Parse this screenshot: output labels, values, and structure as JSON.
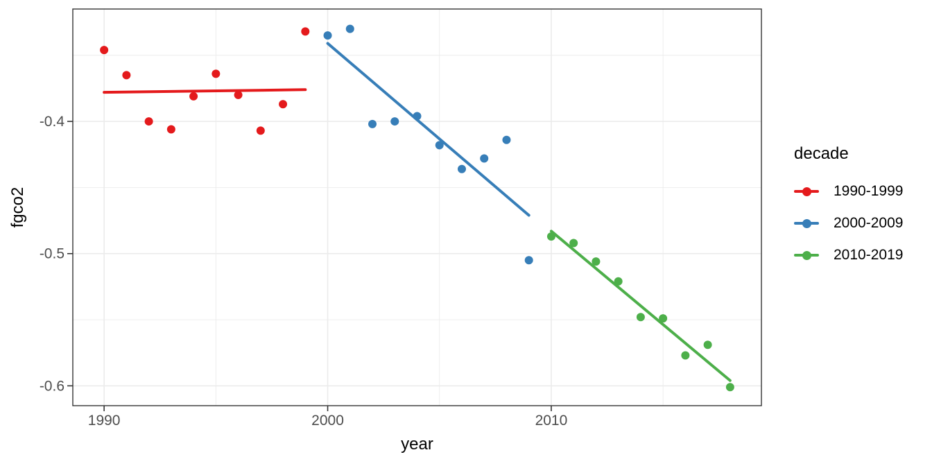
{
  "chart_data": {
    "type": "scatter",
    "title": "",
    "xlabel": "year",
    "ylabel": "fgco2",
    "legend_title": "decade",
    "legend_position": "right",
    "grid": true,
    "colors": {
      "background": "#ffffff",
      "panel_background": "#ffffff",
      "panel_border": "#333333",
      "grid_major": "#ebebeb",
      "grid_minor": "#ebebeb",
      "tick_mark": "#333333",
      "axis_text": "#4d4d4d",
      "axis_title": "#000000"
    },
    "x_axis": {
      "range": [
        1988.6,
        2019.4
      ],
      "ticks": [
        1990,
        2000,
        2010
      ],
      "tick_labels": [
        "1990",
        "2000",
        "2010"
      ],
      "minor_ticks": [
        1995,
        2005,
        2015
      ]
    },
    "y_axis": {
      "range": [
        -0.615,
        -0.315
      ],
      "ticks": [
        -0.4,
        -0.5,
        -0.6
      ],
      "tick_labels": [
        "-0.4",
        "-0.5",
        "-0.6"
      ],
      "minor_ticks": [
        -0.35,
        -0.45,
        -0.55
      ]
    },
    "series": [
      {
        "name": "1990-1999",
        "color": "#e41a1c",
        "x": [
          1990,
          1991,
          1992,
          1993,
          1994,
          1995,
          1996,
          1997,
          1998,
          1999
        ],
        "y": [
          -0.346,
          -0.365,
          -0.4,
          -0.406,
          -0.381,
          -0.364,
          -0.38,
          -0.407,
          -0.387,
          -0.332
        ],
        "trend": {
          "x": [
            1990,
            1999
          ],
          "y": [
            -0.378,
            -0.376
          ]
        }
      },
      {
        "name": "2000-2009",
        "color": "#377eb8",
        "x": [
          2000,
          2001,
          2002,
          2003,
          2004,
          2005,
          2006,
          2007,
          2008,
          2009
        ],
        "y": [
          -0.335,
          -0.33,
          -0.402,
          -0.4,
          -0.396,
          -0.418,
          -0.436,
          -0.428,
          -0.414,
          -0.505
        ],
        "trend": {
          "x": [
            2000,
            2009
          ],
          "y": [
            -0.341,
            -0.471
          ]
        }
      },
      {
        "name": "2010-2019",
        "color": "#4daf4a",
        "x": [
          2010,
          2011,
          2012,
          2013,
          2014,
          2015,
          2016,
          2017,
          2018
        ],
        "y": [
          -0.487,
          -0.492,
          -0.506,
          -0.521,
          -0.548,
          -0.549,
          -0.577,
          -0.569,
          -0.601
        ],
        "trend": {
          "x": [
            2010,
            2018
          ],
          "y": [
            -0.483,
            -0.596
          ]
        }
      }
    ]
  }
}
